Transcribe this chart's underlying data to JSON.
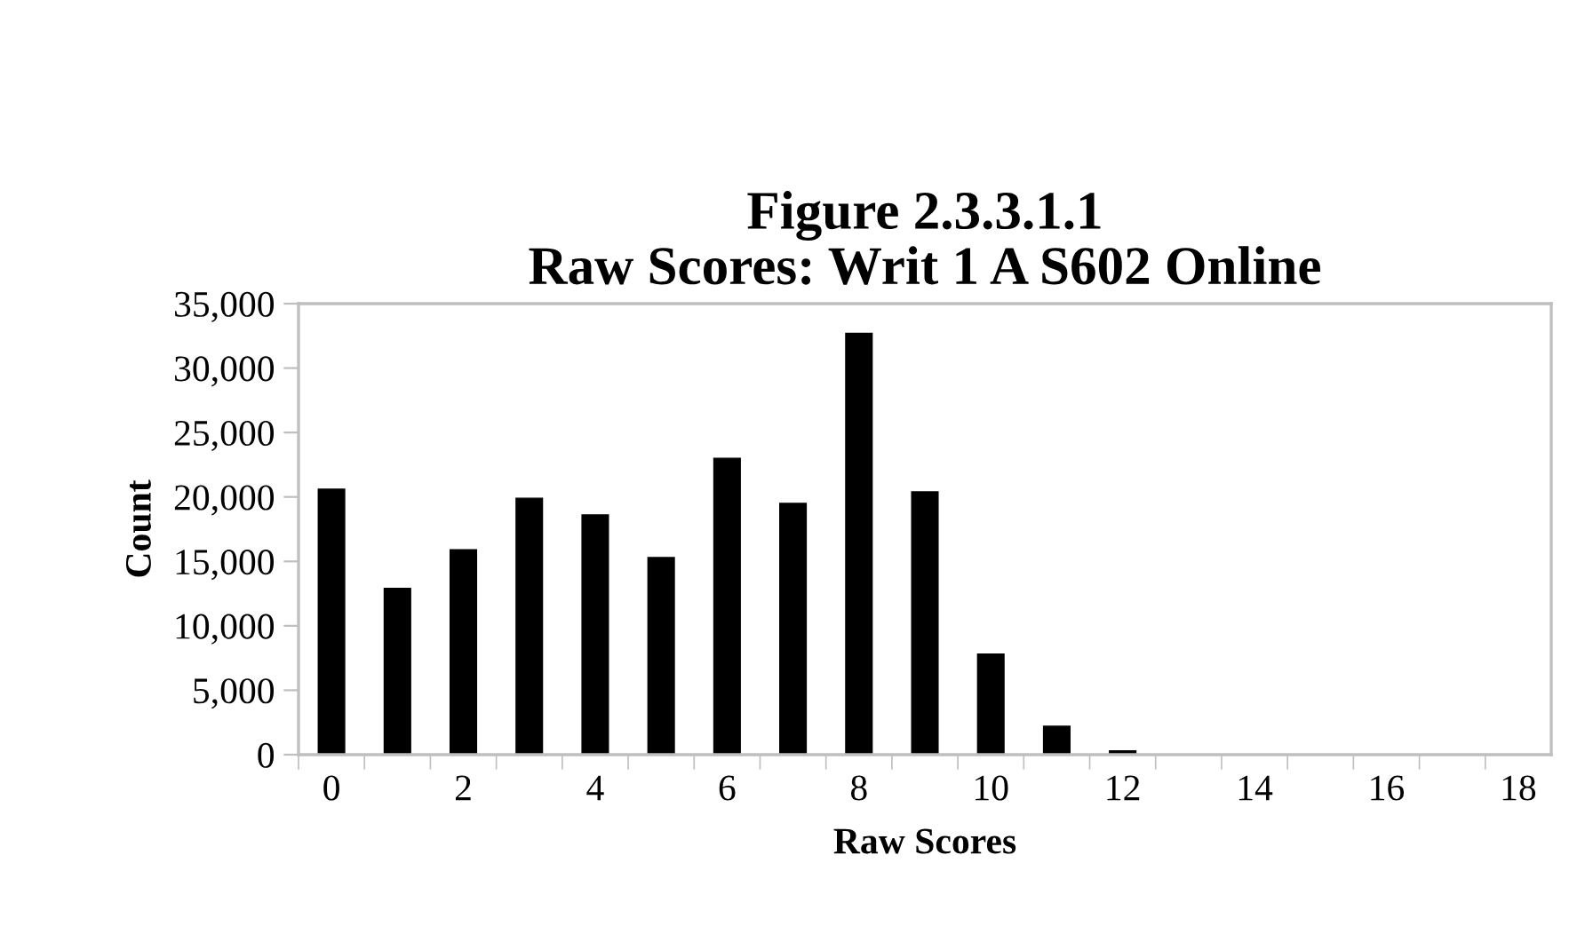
{
  "chart_data": {
    "type": "bar",
    "title": "Figure 2.3.3.1.1\nRaw Scores: Writ 1 A S602 Online",
    "xlabel": "Raw Scores",
    "ylabel": "Count",
    "categories": [
      "0",
      null,
      "2",
      null,
      "4",
      null,
      "6",
      null,
      "8",
      null,
      "10",
      null,
      "12",
      null,
      "14",
      null,
      "16",
      null,
      "18"
    ],
    "values": [
      20600,
      12900,
      15900,
      19900,
      18600,
      15300,
      23000,
      19500,
      32700,
      20400,
      7800,
      2200,
      300,
      0,
      0,
      0,
      0,
      0,
      0
    ],
    "color": "#000000",
    "ylim": [
      0,
      35000
    ],
    "yticks": [
      {
        "value": 0,
        "label": "0"
      },
      {
        "value": 5000,
        "label": "5,000"
      },
      {
        "value": 10000,
        "label": "10,000"
      },
      {
        "value": 15000,
        "label": "15,000"
      },
      {
        "value": 20000,
        "label": "20,000"
      },
      {
        "value": 25000,
        "label": "25,000"
      },
      {
        "value": 30000,
        "label": "30,000"
      },
      {
        "value": 35000,
        "label": "35,000"
      }
    ],
    "grid": false,
    "legend": false
  }
}
